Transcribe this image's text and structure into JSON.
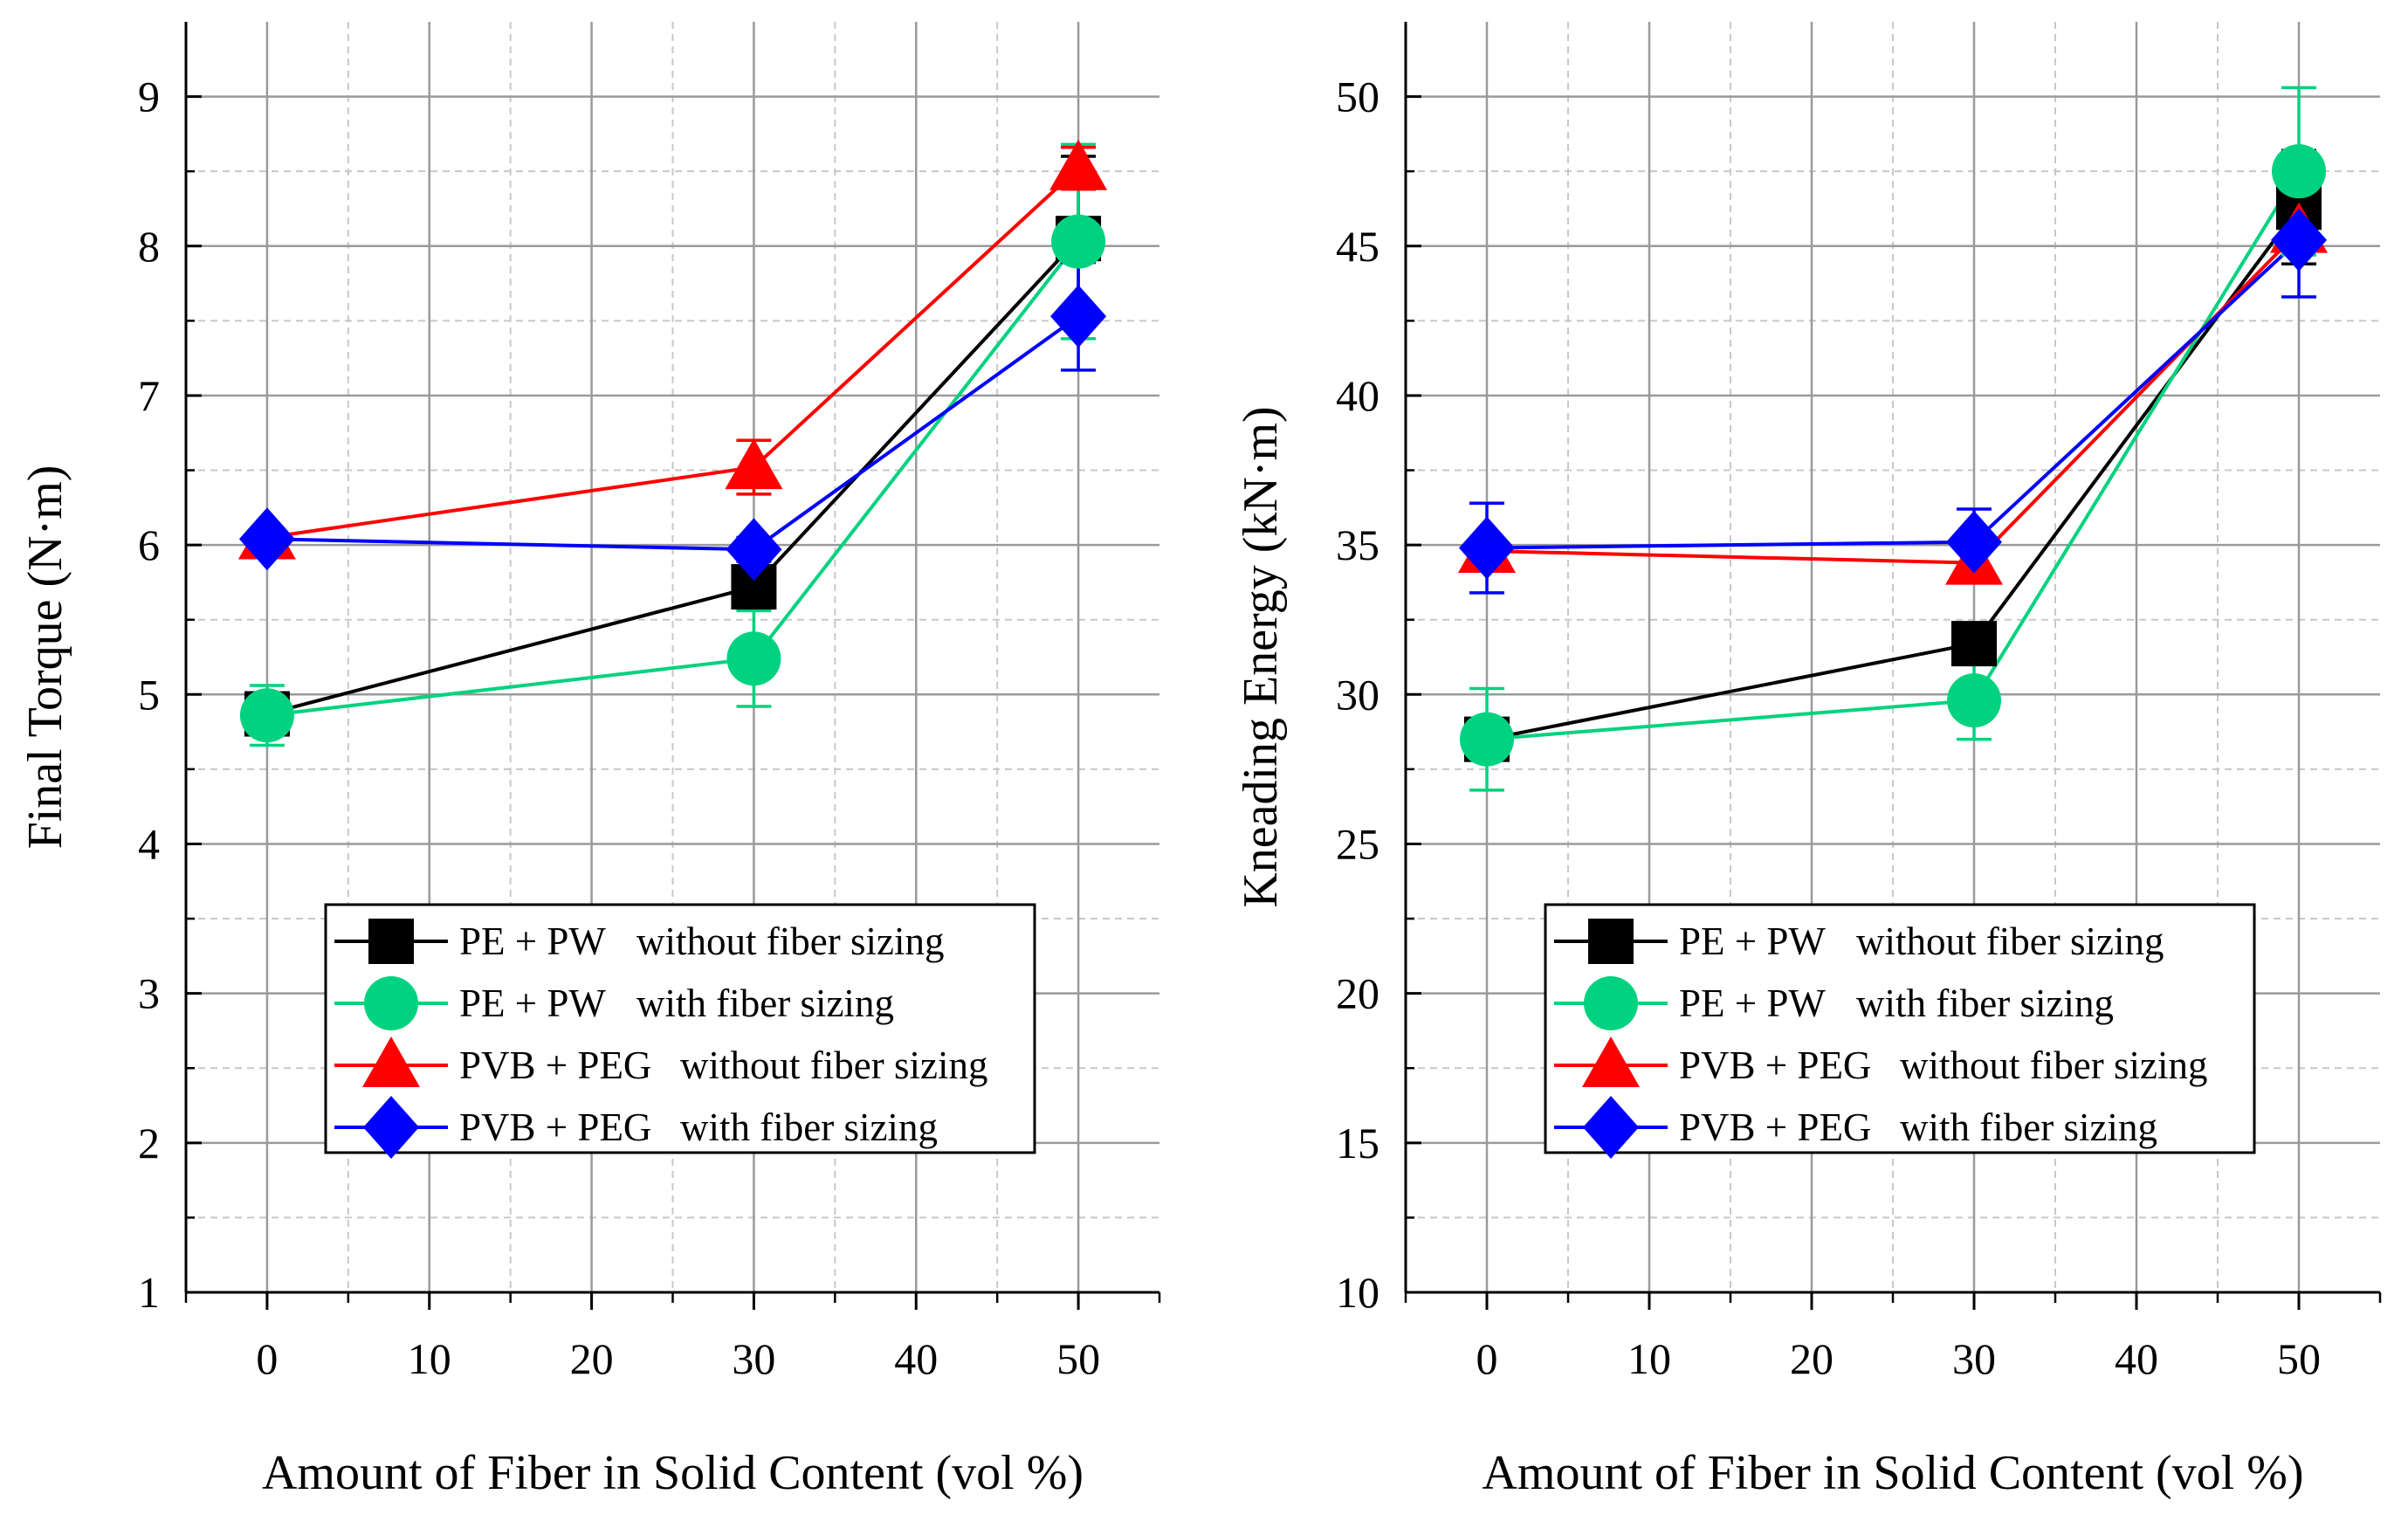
{
  "chart_data": [
    {
      "type": "line",
      "id": "torque",
      "title": "",
      "xlabel": "Amount of Fiber in Solid Content (vol %)",
      "ylabel": "Final Torque (N·m)",
      "xlim": [
        -5,
        55
      ],
      "ylim": [
        1,
        9.5
      ],
      "xticks": [
        0,
        10,
        20,
        30,
        40,
        50
      ],
      "xtick_labels": [
        "0",
        "10",
        "20",
        "30",
        "40",
        "50"
      ],
      "yticks": [
        1,
        2,
        3,
        4,
        5,
        6,
        7,
        8,
        9
      ],
      "ytick_labels": [
        "1",
        "2",
        "3",
        "4",
        "5",
        "6",
        "7",
        "8",
        "9"
      ],
      "grid": true,
      "legend_position": "bottom-center",
      "x": [
        0,
        30,
        50
      ],
      "series": [
        {
          "name": "PE + PW",
          "desc": "without fiber sizing",
          "marker": "square",
          "color": "#000000",
          "values": [
            4.87,
            5.72,
            8.05
          ],
          "errors": [
            0.1,
            0.12,
            0.55
          ]
        },
        {
          "name": "PE + PW",
          "desc": "with fiber sizing",
          "marker": "circle",
          "color": "#00d27f",
          "values": [
            4.86,
            5.24,
            8.03
          ],
          "errors": [
            0.2,
            0.32,
            0.65
          ]
        },
        {
          "name": "PVB + PEG",
          "desc": "without fiber sizing",
          "marker": "triangle",
          "color": "#ff0000",
          "values": [
            6.05,
            6.52,
            8.52
          ],
          "errors": [
            0.05,
            0.18,
            0.14
          ]
        },
        {
          "name": "PVB + PEG",
          "desc": "with fiber sizing",
          "marker": "diamond",
          "color": "#0000ff",
          "values": [
            6.04,
            5.97,
            7.53
          ],
          "errors": [
            0.04,
            0.08,
            0.36
          ]
        }
      ]
    },
    {
      "type": "line",
      "id": "energy",
      "title": "",
      "xlabel": "Amount of Fiber in Solid Content (vol %)",
      "ylabel": "Kneading Energy (kN·m)",
      "xlim": [
        -5,
        55
      ],
      "ylim": [
        10,
        52.5
      ],
      "xticks": [
        0,
        10,
        20,
        30,
        40,
        50
      ],
      "xtick_labels": [
        "0",
        "10",
        "20",
        "30",
        "40",
        "50"
      ],
      "yticks": [
        10,
        15,
        20,
        25,
        30,
        35,
        40,
        45,
        50
      ],
      "ytick_labels": [
        "10",
        "15",
        "20",
        "25",
        "30",
        "35",
        "40",
        "45",
        "50"
      ],
      "grid": true,
      "legend_position": "bottom-center",
      "x": [
        0,
        30,
        50
      ],
      "series": [
        {
          "name": "PE + PW",
          "desc": "without fiber sizing",
          "marker": "square",
          "color": "#000000",
          "values": [
            28.5,
            31.7,
            46.3
          ],
          "errors": [
            0.4,
            0.6,
            1.9
          ]
        },
        {
          "name": "PE + PW",
          "desc": "with fiber sizing",
          "marker": "circle",
          "color": "#00d27f",
          "values": [
            28.5,
            29.8,
            47.5
          ],
          "errors": [
            1.7,
            1.3,
            2.8
          ]
        },
        {
          "name": "PVB + PEG",
          "desc": "without fiber sizing",
          "marker": "triangle",
          "color": "#ff0000",
          "values": [
            34.8,
            34.4,
            45.5
          ],
          "errors": [
            0.4,
            0.6,
            0.6
          ]
        },
        {
          "name": "PVB + PEG",
          "desc": "with fiber sizing",
          "marker": "diamond",
          "color": "#0000ff",
          "values": [
            34.9,
            35.1,
            45.2
          ],
          "errors": [
            1.5,
            1.1,
            1.9
          ]
        }
      ]
    }
  ]
}
